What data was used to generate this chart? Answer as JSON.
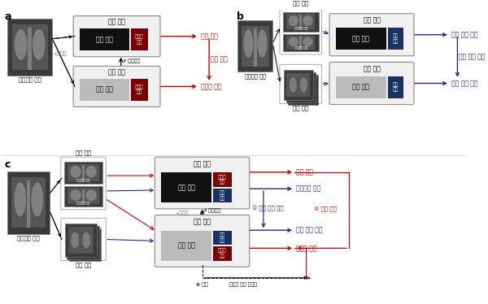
{
  "bg_color": "#ffffff",
  "panel_a": {
    "label": "a",
    "xray_label": "엑스레이 영상",
    "teacher_label": "선생 모델",
    "student_label": "학생 모델",
    "backbone_label": "백본 구조",
    "class_head_label": "클래스\n헤드",
    "repeat_label": "반복학습",
    "noise_label": "+노이즈",
    "virtual_label": "가상 라벨",
    "self_train_label": "자기 훈련",
    "class_pred_label": "클래스 예측"
  },
  "panel_b": {
    "label": "b",
    "xray_label": "엑스레이 영상",
    "global_crop_label": "광역 자름",
    "local_crop_label": "국소 자름",
    "teacher_label": "선생 모델",
    "student_label": "학생 모델",
    "backbone_label": "백본 구조",
    "proj_head_label": "특징\n헤드",
    "img_repr_label1": "영상 표현 특징",
    "self_sup_label": "자기 지도 학습",
    "img_repr_label2": "영상 표현 특징"
  },
  "panel_c": {
    "label": "c",
    "xray_label": "엑스레이 영상",
    "global_crop_label": "광역 자름",
    "local_crop_label": "국소 자름",
    "upper_model_label": "학생 모델",
    "lower_model_label": "학생 모델",
    "backbone_label": "백본 구조",
    "class_head_label": "클래스\n헤드",
    "proj_head_label": "특징\n헤드",
    "repeat_label": "반복학습",
    "noise_label": "+노이즈",
    "virtual_label": "가상 라벨",
    "img_repr_label1": "영상표현 특징",
    "self_sup_label": "① 자기 지도 학습",
    "self_train_label": "② 자기 훈련",
    "img_repr_label2": "영상 표현 특징",
    "class_pred_label": "클래스 예측",
    "correction_label": "⊕ 교정",
    "small_label_label": "소량의 라벨 데이터"
  },
  "colors": {
    "black_box": "#111111",
    "gray_box": "#bbbbbb",
    "red_head": "#7a0000",
    "blue_head": "#1a3060",
    "red_arrow": "#cc0000",
    "blue_arrow": "#1a3080",
    "text_red": "#cc0000",
    "text_blue": "#1a3080",
    "outer_box_edge": "#888888",
    "outer_box_fill": "#f0f0f0"
  }
}
